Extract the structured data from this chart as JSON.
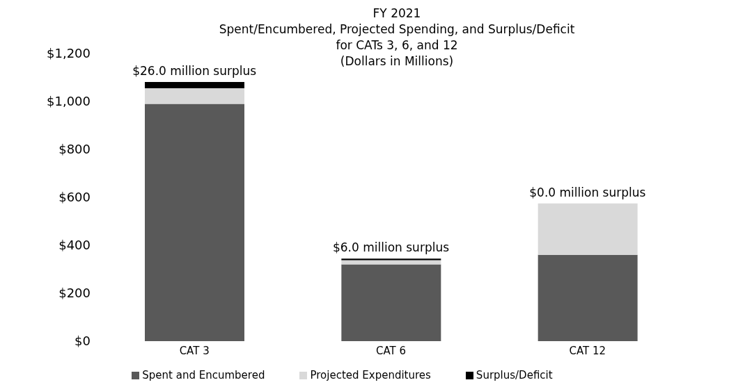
{
  "chart_data": {
    "type": "bar",
    "title": "FY 2021\nSpent/Encumbered, Projected Spending, and Surplus/Deficit\nfor CATs 3, 6, and 12\n(Dollars in Millions)",
    "categories": [
      "CAT 3",
      "CAT 6",
      "CAT 12"
    ],
    "stacked": true,
    "series": [
      {
        "name": "Spent and Encumbered",
        "color": "#595959",
        "values": [
          990,
          320,
          360
        ]
      },
      {
        "name": "Projected Expenditures",
        "color": "#d9d9d9",
        "values": [
          65,
          18,
          215
        ]
      },
      {
        "name": "Surplus/Deficit",
        "color": "#000000",
        "values": [
          26,
          6,
          0
        ]
      }
    ],
    "ylim": [
      0,
      1200
    ],
    "yticks": [
      {
        "value": 0,
        "label": "$0"
      },
      {
        "value": 200,
        "label": "$200"
      },
      {
        "value": 400,
        "label": "$400"
      },
      {
        "value": 600,
        "label": "$600"
      },
      {
        "value": 800,
        "label": "$800"
      },
      {
        "value": 1000,
        "label": "$1,000"
      },
      {
        "value": 1200,
        "label": "$1,200"
      }
    ],
    "annotations": [
      {
        "text": "$26.0 million surplus",
        "x": "CAT 3",
        "y": 1081
      },
      {
        "text": "$6.0 million surplus",
        "x": "CAT 6",
        "y": 344
      },
      {
        "text": "$0.0 million surplus",
        "x": "CAT 12",
        "y": 575
      }
    ],
    "grid": false,
    "legend": "bottom"
  }
}
